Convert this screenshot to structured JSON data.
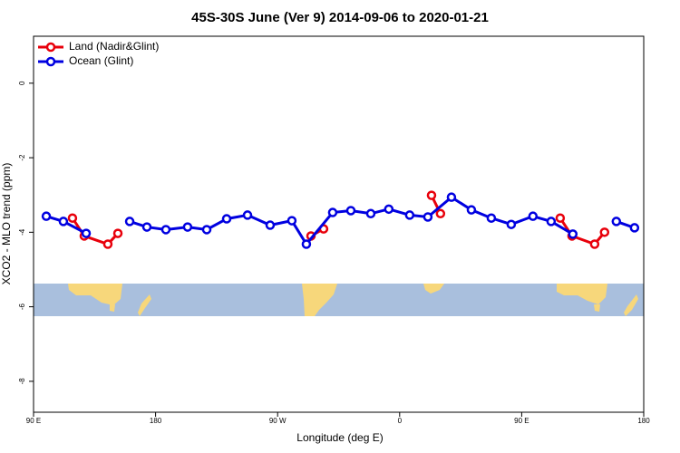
{
  "chart_data": {
    "type": "line",
    "title": "45S-30S June (Ver 9)   2014-09-06 to 2020-01-21",
    "x_label": "Longitude (deg E)",
    "y_label": "XCO2 - MLO trend (ppm)",
    "xlim": [
      90,
      540
    ],
    "ylim": [
      -8.83,
      1.26
    ],
    "xticks": [
      {
        "value": 90,
        "label": "90 E"
      },
      180,
      {
        "value": 270,
        "label": "90 W"
      },
      {
        "value": 360,
        "label": "0"
      },
      {
        "value": 450,
        "label": "90 E"
      },
      {
        "value": 540,
        "label": "180"
      }
    ],
    "yticks": [
      -8,
      -6,
      -4,
      -2,
      0
    ],
    "legend": "top-left",
    "series": [
      {
        "name": "Land (Nadir&Glint)",
        "color": "#e8000b",
        "x": [
          118.7,
          127.4,
          144.8,
          152.2,
          null,
          294.6,
          303.9,
          null,
          383.5,
          390.1,
          null,
          478.4,
          487.1,
          503.8,
          511.1
        ],
        "values": [
          -3.62,
          -4.1,
          -4.32,
          -4.03,
          null,
          -4.1,
          -3.91,
          null,
          -3.01,
          -3.5,
          null,
          -3.62,
          -4.1,
          -4.32,
          -4.0
        ]
      },
      {
        "name": "Ocean (Glint)",
        "color": "#0000e0",
        "x": [
          99.4,
          112,
          128.8,
          null,
          160.9,
          173.6,
          187.6,
          203.6,
          217.7,
          232.4,
          247.8,
          264.5,
          280.5,
          291.2,
          310.6,
          324,
          338.7,
          352,
          367.4,
          380.8,
          398.2,
          412.9,
          427.6,
          442.3,
          458.3,
          471.7,
          487.7,
          null,
          519.8,
          533.2
        ],
        "values": [
          -3.57,
          -3.71,
          -4.03,
          null,
          -3.71,
          -3.86,
          -3.93,
          -3.86,
          -3.93,
          -3.64,
          -3.54,
          -3.81,
          -3.69,
          -4.32,
          -3.47,
          -3.42,
          -3.5,
          -3.38,
          -3.54,
          -3.59,
          -3.06,
          -3.4,
          -3.62,
          -3.79,
          -3.57,
          -3.71,
          -4.05,
          null,
          -3.71,
          -3.88
        ]
      }
    ]
  }
}
